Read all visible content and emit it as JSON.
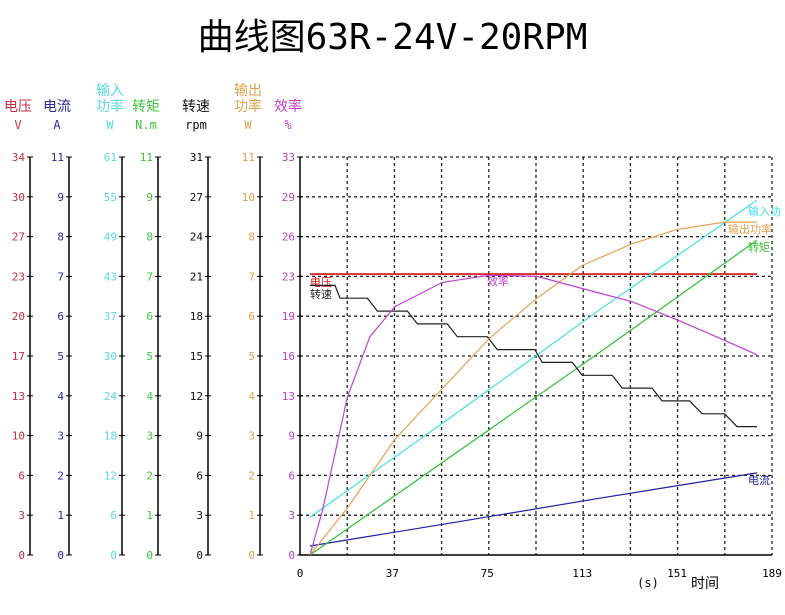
{
  "chart_data": {
    "type": "line",
    "title": "曲线图63R-24V-20RPM",
    "x_axis": {
      "ticks": [
        0,
        37,
        75,
        113,
        151,
        189
      ],
      "range": [
        0,
        189
      ],
      "unit_label": "(s)",
      "label": "时间"
    },
    "grid": true,
    "axes": [
      {
        "id": "voltage",
        "name": "电压",
        "unit": "V",
        "color": "#c03040",
        "max": 34,
        "ticks": [
          0,
          3,
          6,
          10,
          13,
          17,
          20,
          23,
          27,
          30,
          34
        ]
      },
      {
        "id": "current",
        "name": "电流",
        "unit": "A",
        "color": "#2a2a9a",
        "max": 11,
        "ticks": [
          0,
          1,
          2,
          3,
          4,
          5,
          6,
          7,
          8,
          9,
          11
        ]
      },
      {
        "id": "input_power",
        "name": "输入功率",
        "unit": "W",
        "color": "#5ad8e0",
        "max": 61,
        "ticks": [
          0,
          6,
          12,
          18,
          24,
          30,
          37,
          43,
          49,
          55,
          61
        ]
      },
      {
        "id": "torque",
        "name": "转矩",
        "unit": "N.m",
        "color": "#3cc83c",
        "max": 11,
        "ticks": [
          0,
          1,
          2,
          3,
          4,
          5,
          6,
          7,
          8,
          9,
          11
        ]
      },
      {
        "id": "speed",
        "name": "转速",
        "unit": "rpm",
        "color": "#111111",
        "max": 31,
        "ticks": [
          0,
          3,
          6,
          9,
          12,
          15,
          18,
          21,
          24,
          27,
          31
        ]
      },
      {
        "id": "output_power",
        "name": "输出功率",
        "unit": "W",
        "color": "#e0a050",
        "max": 11,
        "ticks": [
          0,
          1,
          2,
          3,
          4,
          5,
          6,
          7,
          8,
          10,
          11
        ]
      },
      {
        "id": "efficiency",
        "name": "效率",
        "unit": "%",
        "color": "#c040c0",
        "max": 33,
        "ticks": [
          0,
          3,
          6,
          9,
          13,
          16,
          19,
          23,
          26,
          29,
          33
        ]
      }
    ],
    "series": [
      {
        "name": "电压",
        "axis": "voltage",
        "color": "#d01010",
        "points": [
          [
            4,
            24
          ],
          [
            183,
            24
          ]
        ]
      },
      {
        "name": "电流",
        "axis": "current",
        "color": "#2020a0",
        "points": [
          [
            4,
            0.25
          ],
          [
            60,
            0.88
          ],
          [
            120,
            1.57
          ],
          [
            183,
            2.27
          ]
        ]
      },
      {
        "name": "输入功",
        "axis": "input_power",
        "color": "#40e0e8",
        "points": [
          [
            4,
            5.8
          ],
          [
            60,
            21
          ],
          [
            120,
            37.6
          ],
          [
            183,
            54.4
          ]
        ]
      },
      {
        "name": "转矩",
        "axis": "torque",
        "color": "#30c030",
        "points": [
          [
            4,
            0
          ],
          [
            60,
            2.7
          ],
          [
            120,
            5.6
          ],
          [
            183,
            8.7
          ]
        ]
      },
      {
        "name": "转速",
        "axis": "speed",
        "color": "#202020",
        "points": [
          [
            4,
            21
          ],
          [
            14,
            21
          ],
          [
            16,
            20
          ],
          [
            27,
            20
          ],
          [
            31,
            19
          ],
          [
            43,
            19
          ],
          [
            47,
            18
          ],
          [
            59,
            18
          ],
          [
            63,
            17
          ],
          [
            75,
            17
          ],
          [
            79,
            16
          ],
          [
            94,
            16
          ],
          [
            97,
            15
          ],
          [
            109,
            15
          ],
          [
            113,
            14
          ],
          [
            125,
            14
          ],
          [
            129,
            13
          ],
          [
            141,
            13
          ],
          [
            145,
            12
          ],
          [
            156,
            12
          ],
          [
            161,
            11
          ],
          [
            170,
            11
          ],
          [
            175,
            10
          ],
          [
            183,
            10
          ]
        ]
      },
      {
        "name": "输出功率",
        "axis": "output_power",
        "color": "#e8a050",
        "points": [
          [
            4,
            0
          ],
          [
            19,
            1.3
          ],
          [
            38,
            3.2
          ],
          [
            57,
            4.6
          ],
          [
            76,
            6.0
          ],
          [
            95,
            7.1
          ],
          [
            113,
            8.0
          ],
          [
            133,
            8.6
          ],
          [
            151,
            9.0
          ],
          [
            170,
            9.2
          ],
          [
            183,
            9.2
          ]
        ]
      },
      {
        "name": "效率",
        "axis": "efficiency",
        "color": "#c040d0",
        "points": [
          [
            4,
            0
          ],
          [
            9,
            3.7
          ],
          [
            19,
            13.1
          ],
          [
            28,
            18.1
          ],
          [
            38,
            20.6
          ],
          [
            57,
            22.6
          ],
          [
            76,
            23.2
          ],
          [
            95,
            23.1
          ],
          [
            113,
            22.1
          ],
          [
            133,
            21.0
          ],
          [
            151,
            19.5
          ],
          [
            170,
            17.8
          ],
          [
            183,
            16.6
          ]
        ]
      }
    ]
  }
}
